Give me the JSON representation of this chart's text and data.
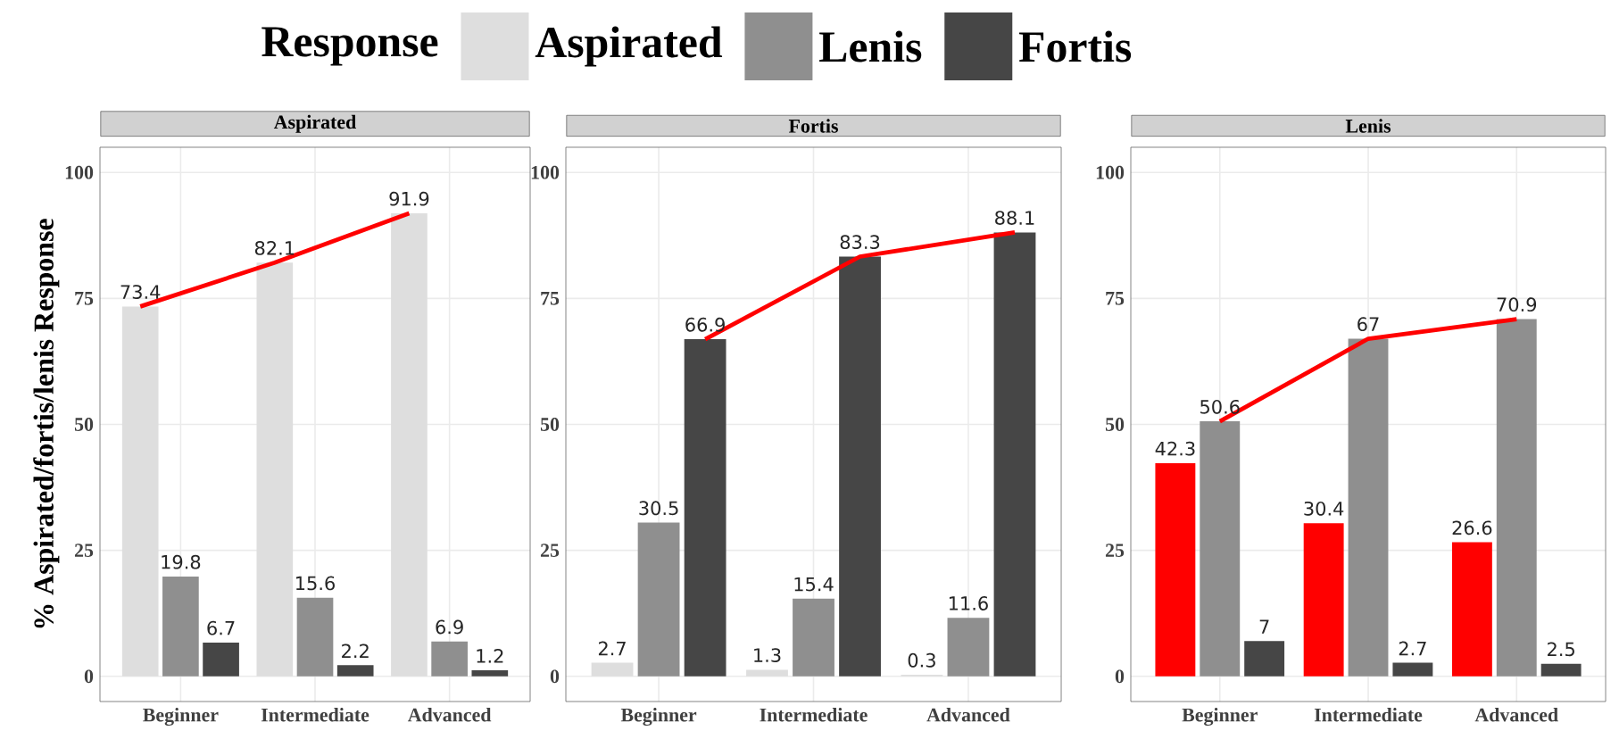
{
  "chart_data": [
    {
      "type": "bar",
      "title": "Aspirated",
      "ylabel": "% Aspirated/fortis/lenis Response",
      "legend_title": "Response",
      "legend": "top",
      "grid": true,
      "categories": [
        "Beginner",
        "Intermediate",
        "Advanced"
      ],
      "ylim": [
        -5,
        105
      ],
      "yticks": [
        0,
        25,
        50,
        75,
        100
      ],
      "series": [
        {
          "name": "Aspirated",
          "color": "#dedede",
          "values": [
            73.4,
            82.1,
            91.9
          ],
          "value_labels": [
            "73.4",
            "82.1",
            "91.9"
          ]
        },
        {
          "name": "Lenis",
          "color": "#8f8f8f",
          "values": [
            19.8,
            15.6,
            6.9
          ],
          "value_labels": [
            "19.8",
            "15.6",
            "6.9"
          ]
        },
        {
          "name": "Fortis",
          "color": "#464646",
          "values": [
            6.7,
            2.2,
            1.2
          ],
          "value_labels": [
            "6.7",
            "2.2",
            "1.2"
          ]
        },
        {
          "type": "line",
          "color": "#ff0000",
          "values": [
            73.4,
            82.1,
            91.9
          ]
        }
      ]
    },
    {
      "type": "bar",
      "title": "Fortis",
      "grid": true,
      "categories": [
        "Beginner",
        "Intermediate",
        "Advanced"
      ],
      "ylim": [
        -5,
        105
      ],
      "yticks": [
        0,
        25,
        50,
        75,
        100
      ],
      "series": [
        {
          "color": "#dedede",
          "values": [
            2.7,
            1.3,
            0.3
          ],
          "value_labels": [
            "2.7",
            "1.3",
            "0.3"
          ]
        },
        {
          "color": "#8f8f8f",
          "values": [
            30.5,
            15.4,
            11.6
          ],
          "value_labels": [
            "30.5",
            "15.4",
            "11.6"
          ]
        },
        {
          "color": "#464646",
          "values": [
            66.9,
            83.3,
            88.1
          ],
          "value_labels": [
            "66.9",
            "83.3",
            "88.1"
          ]
        },
        {
          "type": "line",
          "color": "#ff0000",
          "values": [
            66.9,
            83.3,
            88.1
          ]
        }
      ]
    },
    {
      "type": "bar",
      "title": "Lenis",
      "grid": true,
      "categories": [
        "Beginner",
        "Intermediate",
        "Advanced"
      ],
      "ylim": [
        -5,
        105
      ],
      "yticks": [
        0,
        25,
        50,
        75,
        100
      ],
      "series": [
        {
          "color": "#ff0000",
          "values": [
            42.3,
            30.4,
            26.6
          ],
          "value_labels": [
            "42.3",
            "30.4",
            "26.6"
          ]
        },
        {
          "color": "#8f8f8f",
          "values": [
            50.6,
            67,
            70.9
          ],
          "value_labels": [
            "50.6",
            "67",
            "70.9"
          ]
        },
        {
          "color": "#464646",
          "values": [
            7,
            2.7,
            2.5
          ],
          "value_labels": [
            "7",
            "2.7",
            "2.5"
          ]
        },
        {
          "type": "line",
          "color": "#ff0000",
          "values": [
            50.6,
            67,
            70.9
          ]
        }
      ]
    }
  ]
}
